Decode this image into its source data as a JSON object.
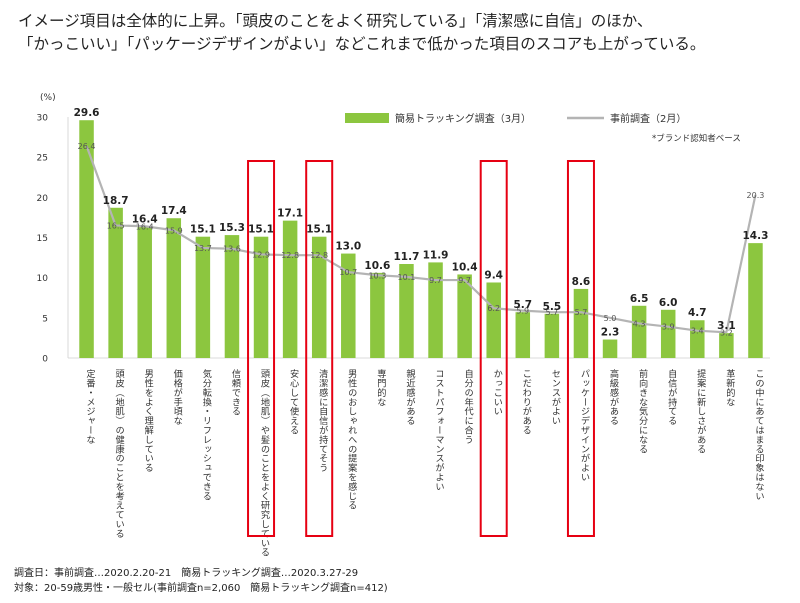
{
  "headline": {
    "line1": "イメージ項目は全体的に上昇。「頭皮のことをよく研究している」「清潔感に自信」のほか、",
    "line2": "「かっこいい」「パッケージデザインがよい」などこれまで低かった項目のスコアも上がっている。"
  },
  "note": "*ブランド認知者ベース",
  "footer": {
    "line1": "調査日：事前調査…2020.2.20-21　簡易トラッキング調査…2020.3.27-29",
    "line2": "対象：20-59歳男性・一般セル(事前調査n=2,060　簡易トラッキング調査n=412)"
  },
  "colors": {
    "bar": "#8cc63f",
    "line": "#b4b4b4",
    "highlight": "#e60012"
  },
  "chart_data": {
    "type": "bar",
    "ylabel": "(%)",
    "ylim": [
      0,
      30
    ],
    "yticks": [
      0,
      5,
      10,
      15,
      20,
      25,
      30
    ],
    "categories": [
      "定番・メジャーな",
      "頭皮（地肌）の健康のことを考えている",
      "男性をよく理解している",
      "価格が手頃な",
      "気分転換・リフレッシュできる",
      "信頼できる",
      "頭皮（地肌）や髪のことをよく研究している",
      "安心して使える",
      "清潔感に自信が持てそう",
      "男性のおしゃれへの提案を感じる",
      "専門的な",
      "親近感がある",
      "コストパフォーマンスがよい",
      "自分の年代に合う",
      "かっこいい",
      "こだわりがある",
      "センスがよい",
      "パッケージデザインがよい",
      "高級感がある",
      "前向きな気分になる",
      "自信が持てる",
      "提案に新しさがある",
      "革新的な",
      "この中にあてはまる印象はない"
    ],
    "series": [
      {
        "name": "簡易トラッキング調査（3月）",
        "kind": "bar",
        "values": [
          29.6,
          18.7,
          16.4,
          17.4,
          15.1,
          15.3,
          15.1,
          17.1,
          15.1,
          13.0,
          10.6,
          11.7,
          11.9,
          10.4,
          9.4,
          5.7,
          5.5,
          8.6,
          2.3,
          6.5,
          6.0,
          4.7,
          3.1,
          14.3
        ],
        "labels": [
          "29.6",
          "18.7",
          "16.4",
          "17.4",
          "15.1",
          "15.3",
          "15.1",
          "17.1",
          "15.1",
          "13.0",
          "10.6",
          "11.7",
          "11.9",
          "10.4",
          "9.4",
          "5.7",
          "5.5",
          "8.6",
          "2.3",
          "6.5",
          "6.0",
          "4.7",
          "3.1",
          "14.3"
        ]
      },
      {
        "name": "事前調査（2月）",
        "kind": "line",
        "values": [
          26.4,
          16.5,
          16.4,
          15.9,
          13.7,
          13.6,
          12.9,
          12.8,
          12.8,
          10.7,
          10.3,
          10.1,
          9.7,
          9.7,
          6.2,
          5.9,
          5.7,
          5.7,
          5.0,
          4.3,
          3.9,
          3.4,
          3.2,
          20.3
        ],
        "labels": [
          "26.4",
          "16.5",
          "16.4",
          "15.9",
          "13.7",
          "13.6",
          "12.9",
          "12.8",
          "12.8",
          "10.7",
          "10.3",
          "10.1",
          "9.7",
          "9.7",
          "6.2",
          "5.9",
          "5.7",
          "5.7",
          "5.0",
          "4.3",
          "3.9",
          "3.4",
          "3.2",
          "20.3"
        ]
      }
    ],
    "highlighted_categories": [
      "頭皮（地肌）や髪のことをよく研究している",
      "清潔感に自信が持てそう",
      "かっこいい",
      "パッケージデザインがよい"
    ],
    "legend_position": "top-right",
    "grid": false
  }
}
